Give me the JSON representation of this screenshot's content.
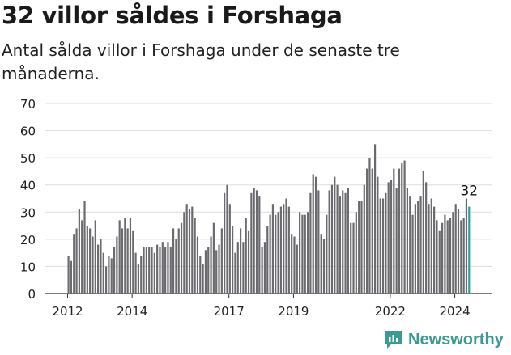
{
  "header": {
    "title": "32 villor såldes i Forshaga",
    "subtitle": "Antal sålda villor i Forshaga under de senaste tre månaderna."
  },
  "logo": {
    "text": "Newsworthy",
    "icon": "newsworthy-logo-icon"
  },
  "colors": {
    "bar": "#6b6b6f",
    "highlight": "#2aa198",
    "grid": "#dddddd",
    "text": "#222222"
  },
  "chart_data": {
    "type": "bar",
    "title": "32 villor såldes i Forshaga",
    "subtitle": "Antal sålda villor i Forshaga under de senaste tre månaderna.",
    "xlabel": "",
    "ylabel": "",
    "ylim": [
      0,
      70
    ],
    "yticks": [
      0,
      10,
      20,
      30,
      40,
      50,
      60,
      70
    ],
    "xticks": [
      "2012",
      "2014",
      "2017",
      "2019",
      "2022",
      "2024"
    ],
    "grid": true,
    "highlight_label": "32",
    "x_start": "2012-01",
    "x_step": "month",
    "series": [
      {
        "values": [
          14,
          12,
          22,
          24,
          31,
          27,
          34,
          25,
          24,
          21,
          27,
          18,
          20,
          15,
          10,
          14,
          13,
          17,
          21,
          27,
          24,
          28,
          24,
          28,
          23,
          15,
          11,
          14,
          17,
          17,
          17,
          17,
          15,
          18,
          17,
          19,
          17,
          19,
          17,
          24,
          20,
          24,
          26,
          30,
          33,
          31,
          32,
          28,
          21,
          14,
          11,
          16,
          17,
          21,
          26,
          16,
          18,
          24,
          37,
          40,
          33,
          25,
          15,
          19,
          24,
          19,
          28,
          23,
          37,
          39,
          38,
          36,
          17,
          19,
          25,
          29,
          33,
          29,
          30,
          32,
          33,
          35,
          32,
          22,
          21,
          18,
          30,
          29,
          29,
          30,
          37,
          44,
          43,
          38,
          22,
          20,
          29,
          38,
          40,
          43,
          40,
          36,
          38,
          37,
          39,
          26,
          26,
          30,
          34,
          34,
          40,
          46,
          50,
          46,
          55,
          43,
          35,
          35,
          37,
          41,
          42,
          46,
          39,
          46,
          48,
          49,
          39,
          36,
          29,
          33,
          34,
          36,
          45,
          41,
          33,
          35,
          32,
          27,
          23,
          26,
          29,
          27,
          28,
          30,
          33,
          31,
          27,
          28,
          35,
          32
        ]
      }
    ]
  }
}
